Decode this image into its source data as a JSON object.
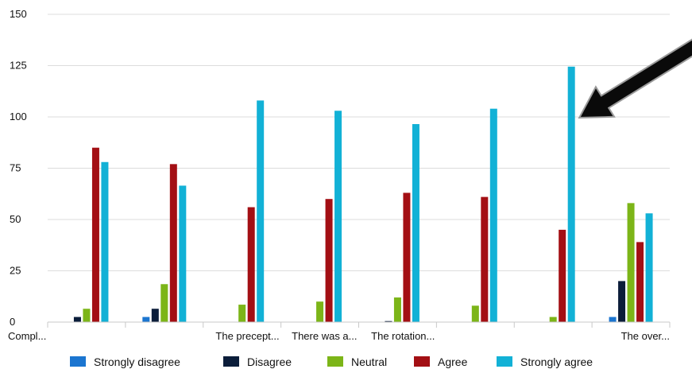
{
  "chart_data": {
    "type": "bar",
    "title": "",
    "xlabel": "",
    "ylabel": "",
    "ylim": [
      0,
      150
    ],
    "yticks": [
      0,
      25,
      50,
      75,
      100,
      125,
      150
    ],
    "grid": true,
    "legend_position": "bottom",
    "categories": [
      "Compl...",
      "",
      "The precept...",
      "There was a...",
      "The rotation...",
      "",
      "",
      "The over..."
    ],
    "series": [
      {
        "name": "Strongly disagree",
        "color": "#1b75d0",
        "values": [
          0,
          2.5,
          0,
          0,
          0,
          0,
          0,
          2.5
        ]
      },
      {
        "name": "Disagree",
        "color": "#0b1d3a",
        "values": [
          2.5,
          6.5,
          0,
          0,
          0.5,
          0,
          0,
          20
        ]
      },
      {
        "name": "Neutral",
        "color": "#7cb518",
        "values": [
          6.5,
          18.5,
          8.5,
          10,
          12,
          8,
          2.5,
          58
        ]
      },
      {
        "name": "Agree",
        "color": "#a30f14",
        "values": [
          85,
          77,
          56,
          60,
          63,
          61,
          45,
          39
        ]
      },
      {
        "name": "Strongly agree",
        "color": "#12b1d6",
        "values": [
          78,
          66.5,
          108,
          103,
          96.5,
          104,
          124.5,
          53
        ]
      }
    ],
    "annotation": {
      "type": "arrow",
      "points_to": {
        "category_index": 6,
        "series": "Strongly agree",
        "value": 124.5
      }
    }
  }
}
